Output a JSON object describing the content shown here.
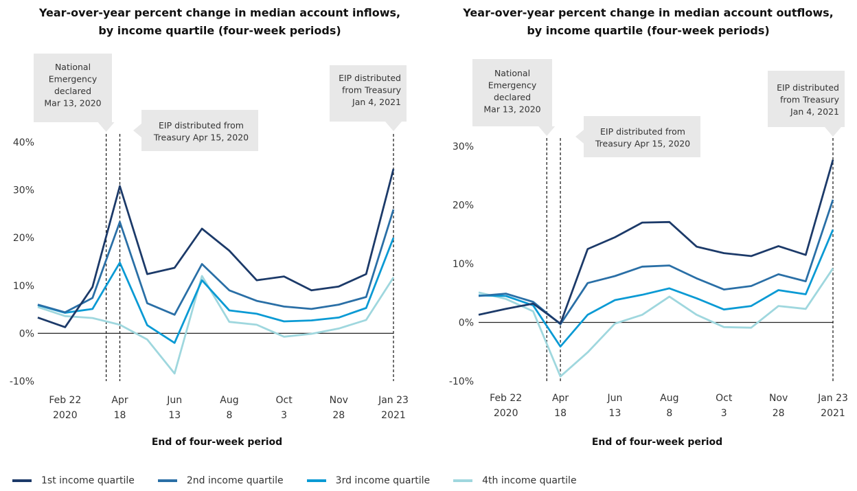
{
  "chart_data": [
    {
      "type": "line",
      "title": [
        "Year-over-year percent change in median account inflows,",
        "by income quartile (four-week periods)"
      ],
      "xlabel": "End of four-week period",
      "ylabel": "",
      "ylim": [
        -10,
        40
      ],
      "yticks": [
        -10,
        0,
        10,
        20,
        30,
        40
      ],
      "ytick_labels": [
        "-10%",
        "0%",
        "10%",
        "20%",
        "30%",
        "40%"
      ],
      "x_tick_labels": [
        [
          "Feb 22",
          "2020"
        ],
        [
          "Apr",
          "18"
        ],
        [
          "Jun",
          "13"
        ],
        [
          "Aug",
          "8"
        ],
        [
          "Oct",
          "3"
        ],
        [
          "Nov",
          "28"
        ],
        [
          "Jan 23",
          "2021"
        ]
      ],
      "x_tick_index": [
        1,
        3,
        5,
        7,
        9,
        11,
        13
      ],
      "x": [
        "Jan 25 2020",
        "Feb 22 2020",
        "Mar 21 2020",
        "Apr 18 2020",
        "May 16 2020",
        "Jun 13 2020",
        "Jul 11 2020",
        "Aug 8 2020",
        "Sep 5 2020",
        "Oct 3 2020",
        "Oct 31 2020",
        "Nov 28 2020",
        "Dec 26 2020",
        "Jan 23 2021"
      ],
      "series": [
        {
          "name": "1st income quartile",
          "color": "#1c3a69",
          "values": [
            3.3,
            1.3,
            9.7,
            30.8,
            12.4,
            13.7,
            21.9,
            17.3,
            11.1,
            11.9,
            9.0,
            9.8,
            12.4,
            34.4
          ]
        },
        {
          "name": "2nd income quartile",
          "color": "#2a6fa6",
          "values": [
            6.0,
            4.4,
            7.4,
            23.3,
            6.3,
            3.9,
            14.5,
            9.0,
            6.8,
            5.6,
            5.1,
            6.0,
            7.6,
            25.9
          ]
        },
        {
          "name": "3rd income quartile",
          "color": "#0a9ad4",
          "values": [
            5.9,
            4.3,
            5.1,
            14.8,
            1.7,
            -2.0,
            11.1,
            4.8,
            4.1,
            2.5,
            2.7,
            3.3,
            5.3,
            20.0
          ]
        },
        {
          "name": "4th income quartile",
          "color": "#9fd7de",
          "values": [
            5.5,
            3.6,
            3.2,
            1.8,
            -1.3,
            -8.4,
            12.0,
            2.4,
            1.8,
            -0.7,
            -0.1,
            1.0,
            2.8,
            11.7
          ]
        }
      ],
      "annotations": [
        {
          "x_index": 2.5,
          "lines": [
            "National",
            "Emergency",
            "declared",
            "Mar 13, 2020"
          ]
        },
        {
          "x_index": 3,
          "lines": [
            "EIP distributed from",
            "Treasury Apr 15, 2020"
          ]
        },
        {
          "x_index": 13,
          "lines": [
            "EIP distributed",
            "from Treasury",
            "Jan 4, 2021"
          ]
        }
      ]
    },
    {
      "type": "line",
      "title": [
        "Year-over-year percent change in median account outflows,",
        "by income quartile (four-week periods)"
      ],
      "xlabel": "End of four-week period",
      "ylabel": "",
      "ylim": [
        -10,
        30
      ],
      "yticks": [
        -10,
        0,
        10,
        20,
        30
      ],
      "ytick_labels": [
        "-10%",
        "0%",
        "10%",
        "20%",
        "30%"
      ],
      "x_tick_labels": [
        [
          "Feb 22",
          "2020"
        ],
        [
          "Apr",
          "18"
        ],
        [
          "Jun",
          "13"
        ],
        [
          "Aug",
          "8"
        ],
        [
          "Oct",
          "3"
        ],
        [
          "Nov",
          "28"
        ],
        [
          "Jan 23",
          "2021"
        ]
      ],
      "x_tick_index": [
        1,
        3,
        5,
        7,
        9,
        11,
        13
      ],
      "x": [
        "Jan 25 2020",
        "Feb 22 2020",
        "Mar 21 2020",
        "Apr 18 2020",
        "May 16 2020",
        "Jun 13 2020",
        "Jul 11 2020",
        "Aug 8 2020",
        "Sep 5 2020",
        "Oct 3 2020",
        "Oct 31 2020",
        "Nov 28 2020",
        "Dec 26 2020",
        "Jan 23 2021"
      ],
      "series": [
        {
          "name": "1st income quartile",
          "color": "#1c3a69",
          "values": [
            1.3,
            2.3,
            3.2,
            -0.2,
            12.5,
            14.5,
            17.0,
            17.1,
            12.9,
            11.8,
            11.3,
            13.0,
            11.5,
            27.7
          ]
        },
        {
          "name": "2nd income quartile",
          "color": "#2a6fa6",
          "values": [
            4.5,
            4.9,
            3.5,
            -0.3,
            6.7,
            7.9,
            9.5,
            9.7,
            7.5,
            5.6,
            6.2,
            8.2,
            7.0,
            20.9
          ]
        },
        {
          "name": "3rd income quartile",
          "color": "#0a9ad4",
          "values": [
            4.6,
            4.5,
            2.9,
            -4.1,
            1.3,
            3.8,
            4.7,
            5.8,
            4.1,
            2.2,
            2.8,
            5.5,
            4.8,
            15.8
          ]
        },
        {
          "name": "4th income quartile",
          "color": "#9fd7de",
          "values": [
            5.1,
            4.0,
            1.9,
            -9.2,
            -5.1,
            -0.2,
            1.3,
            4.4,
            1.3,
            -0.8,
            -0.9,
            2.8,
            2.3,
            9.2
          ]
        }
      ],
      "annotations": [
        {
          "x_index": 2.5,
          "lines": [
            "National",
            "Emergency",
            "declared",
            "Mar 13, 2020"
          ]
        },
        {
          "x_index": 3,
          "lines": [
            "EIP distributed from",
            "Treasury Apr 15, 2020"
          ]
        },
        {
          "x_index": 13,
          "lines": [
            "EIP distributed",
            "from Treasury",
            "Jan 4, 2021"
          ]
        }
      ]
    }
  ],
  "legend": [
    {
      "label": "1st income quartile",
      "color": "#1c3a69"
    },
    {
      "label": "2nd income quartile",
      "color": "#2a6fa6"
    },
    {
      "label": "3rd income quartile",
      "color": "#0a9ad4"
    },
    {
      "label": "4th income quartile",
      "color": "#9fd7de"
    }
  ]
}
